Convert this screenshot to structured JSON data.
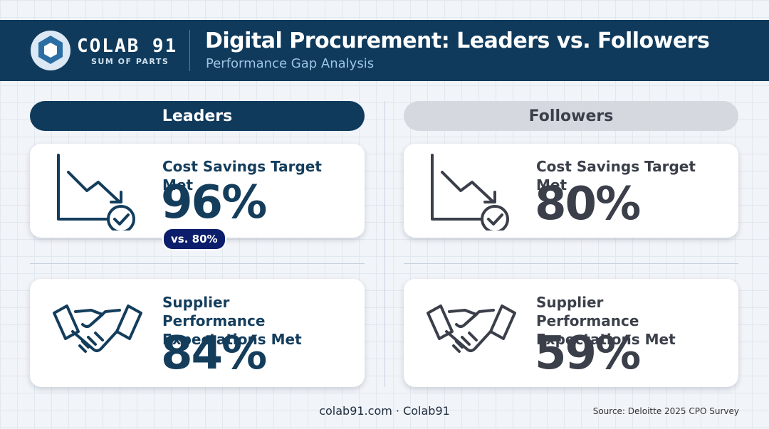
{
  "header": {
    "logo_name": "COLAB 91",
    "logo_tagline": "SUM OF PARTS",
    "title": "Digital Procurement: Leaders vs. Followers",
    "subtitle": "Performance Gap Analysis"
  },
  "columns": [
    {
      "label": "Leaders",
      "cards": [
        {
          "metric": "Cost Savings Target Met",
          "value": "96%",
          "badge": "vs. 80%"
        },
        {
          "metric": "Supplier Performance Expectations Met",
          "value": "84%"
        }
      ]
    },
    {
      "label": "Followers",
      "cards": [
        {
          "metric": "Cost Savings Target Met",
          "value": "80%"
        },
        {
          "metric": "Supplier Performance Expectations Met",
          "value": "59%"
        }
      ]
    }
  ],
  "footer": {
    "site": "colab91.com · Colab91",
    "source": "Source: Deloitte 2025 CPO Survey"
  }
}
